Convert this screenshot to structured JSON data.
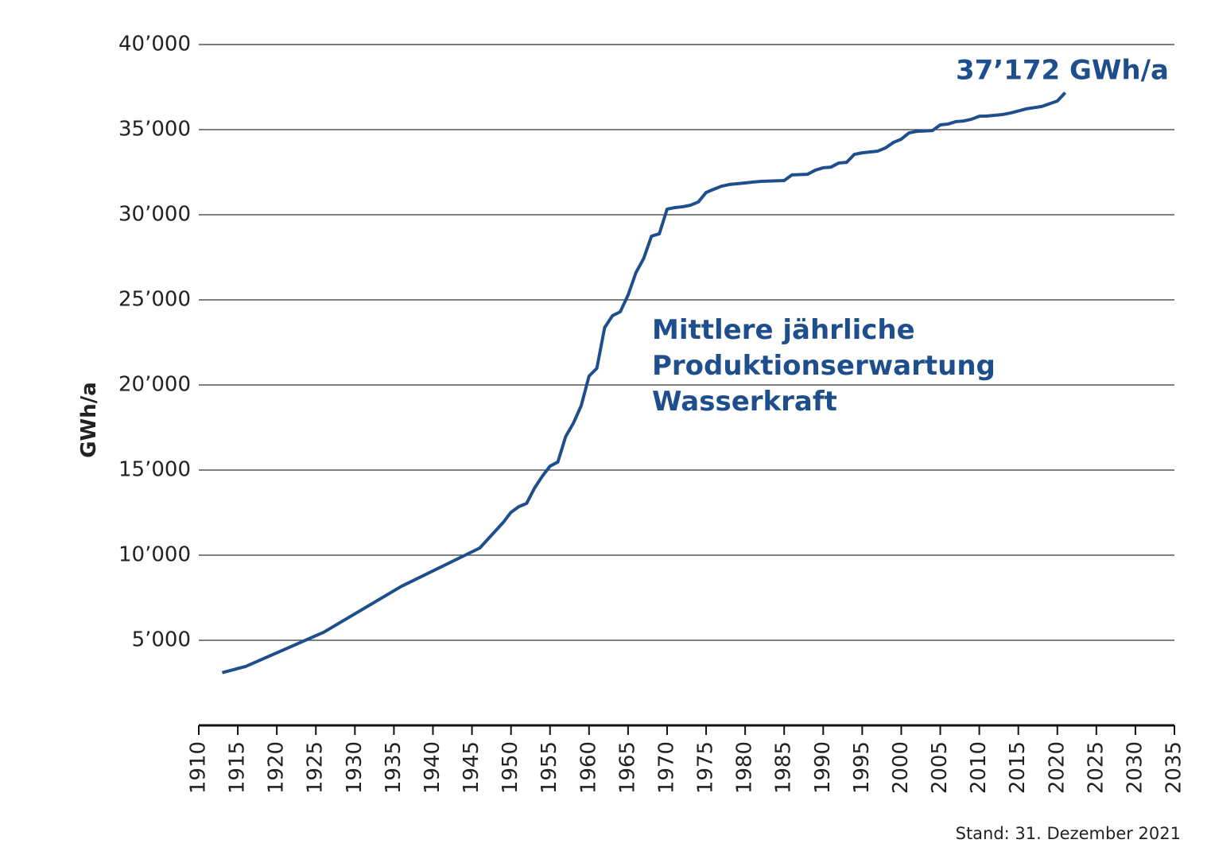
{
  "chart_data": {
    "type": "line",
    "y_label": "GWh/a",
    "annotation": "Mittlere jährliche\nProduktionserwartung\nWasserkraft",
    "end_label": "37’172 GWh/a",
    "footnote": "Stand: 31. Dezember 2021",
    "grid": true,
    "x": [
      1913,
      1916,
      1926,
      1936,
      1946,
      1949,
      1950,
      1951,
      1952,
      1953,
      1954,
      1955,
      1956,
      1957,
      1958,
      1959,
      1960,
      1961,
      1962,
      1963,
      1964,
      1965,
      1966,
      1967,
      1968,
      1969,
      1970,
      1971,
      1972,
      1973,
      1974,
      1975,
      1976,
      1977,
      1978,
      1980,
      1981,
      1982,
      1985,
      1986,
      1988,
      1989,
      1990,
      1991,
      1992,
      1993,
      1994,
      1995,
      1997,
      1998,
      1999,
      2000,
      2001,
      2002,
      2004,
      2005,
      2006,
      2007,
      2008,
      2009,
      2010,
      2011,
      2013,
      2014,
      2016,
      2018,
      2020,
      2021
    ],
    "series": [
      {
        "name": "Mittlere jährliche Produktionserwartung Wasserkraft",
        "color": "#1f4e8c",
        "values": [
          3100,
          3460,
          5470,
          8180,
          10420,
          11920,
          12520,
          12850,
          13040,
          13930,
          14630,
          15230,
          15470,
          16960,
          17760,
          18790,
          20520,
          20980,
          23370,
          24070,
          24300,
          25280,
          26590,
          27430,
          28740,
          28880,
          30330,
          30420,
          30470,
          30560,
          30750,
          31310,
          31500,
          31680,
          31780,
          31870,
          31920,
          31960,
          32010,
          32340,
          32380,
          32620,
          32760,
          32800,
          33040,
          33080,
          33550,
          33640,
          33740,
          33930,
          34250,
          34440,
          34810,
          34900,
          34950,
          35280,
          35330,
          35470,
          35510,
          35610,
          35790,
          35800,
          35890,
          35980,
          36220,
          36360,
          36680,
          37172
        ]
      }
    ],
    "xlim": [
      1910,
      2035
    ],
    "xticks": [
      1910,
      1915,
      1920,
      1925,
      1930,
      1935,
      1940,
      1945,
      1950,
      1955,
      1960,
      1965,
      1970,
      1975,
      1980,
      1985,
      1990,
      1995,
      2000,
      2005,
      2010,
      2015,
      2020,
      2025,
      2030,
      2035
    ],
    "ylim": [
      0,
      40000
    ],
    "yticks": [
      {
        "value": 5000,
        "label": "5’000"
      },
      {
        "value": 10000,
        "label": "10’000"
      },
      {
        "value": 15000,
        "label": "15’000"
      },
      {
        "value": 20000,
        "label": "20’000"
      },
      {
        "value": 25000,
        "label": "25’000"
      },
      {
        "value": 30000,
        "label": "30’000"
      },
      {
        "value": 35000,
        "label": "35’000"
      },
      {
        "value": 40000,
        "label": "40’000"
      }
    ]
  }
}
